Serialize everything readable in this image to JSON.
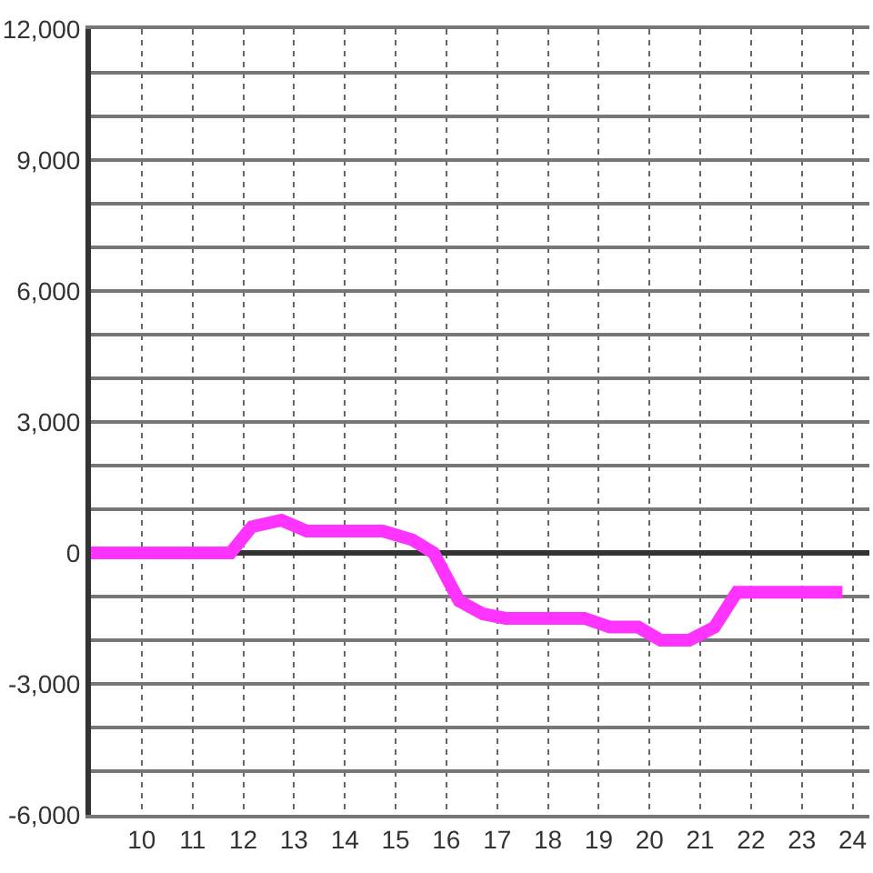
{
  "chart_data": {
    "type": "line",
    "x": [
      9,
      11.75,
      12.17,
      12.75,
      13.25,
      14.75,
      15.33,
      15.75,
      16.25,
      16.72,
      17.17,
      18.72,
      19.22,
      19.78,
      20.22,
      20.78,
      21.28,
      21.72,
      23.8
    ],
    "series": [
      {
        "color": "#ff33ff",
        "values": [
          0,
          0,
          600,
          750,
          500,
          500,
          300,
          0,
          -1100,
          -1400,
          -1500,
          -1500,
          -1700,
          -1700,
          -2000,
          -2000,
          -1700,
          -900,
          -900
        ]
      }
    ],
    "xlim": [
      9,
      24.33
    ],
    "xticks": [
      10,
      11,
      12,
      13,
      14,
      15,
      16,
      17,
      18,
      19,
      20,
      21,
      22,
      23,
      24
    ],
    "ylim": [
      -6000,
      12000
    ],
    "yticks": [
      {
        "value": -6000,
        "label": "-6,000"
      },
      {
        "value": -5000,
        "label": null
      },
      {
        "value": -4000,
        "label": null
      },
      {
        "value": -3000,
        "label": "-3,000"
      },
      {
        "value": -2000,
        "label": null
      },
      {
        "value": -1000,
        "label": null
      },
      0,
      {
        "value": 1000,
        "label": null
      },
      {
        "value": 2000,
        "label": null
      },
      {
        "value": 3000,
        "label": "3,000"
      },
      {
        "value": 4000,
        "label": null
      },
      {
        "value": 5000,
        "label": null
      },
      {
        "value": 6000,
        "label": "6,000"
      },
      {
        "value": 7000,
        "label": null
      },
      {
        "value": 8000,
        "label": null
      },
      {
        "value": 9000,
        "label": "9,000"
      },
      {
        "value": 10000,
        "label": null
      },
      {
        "value": 11000,
        "label": null
      },
      {
        "value": 12000,
        "label": "12,000"
      }
    ],
    "grid": true,
    "line_style": "solid"
  }
}
